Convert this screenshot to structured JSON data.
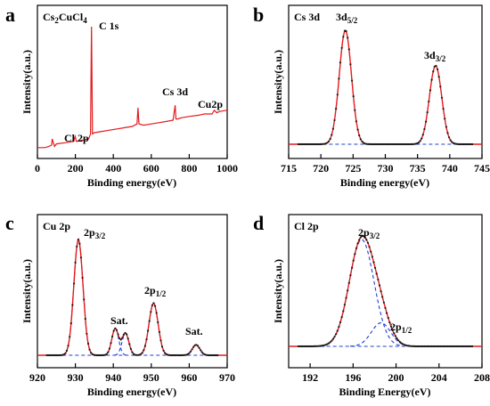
{
  "chart_data": [
    {
      "panel": "a",
      "type": "line",
      "title": "Cs₂CuCl₄",
      "xlabel": "Binding energy(eV)",
      "ylabel": "Intensity(a.u.)",
      "xlim": [
        0,
        1000
      ],
      "ylim": [
        0,
        100
      ],
      "xticks": [
        "0",
        "200",
        "400",
        "600",
        "800",
        "1000"
      ],
      "grid": false,
      "annotations": [
        {
          "text": "C 1s",
          "x": 285,
          "y": 89
        },
        {
          "text": "Cs 3d",
          "x": 726,
          "y": 44
        },
        {
          "text": "Cu2p",
          "x": 935,
          "y": 33
        },
        {
          "text": "Cl 2p",
          "x": 199,
          "y": 13
        }
      ],
      "series": [
        {
          "color": "#e41a1c",
          "x": [
            0,
            40,
            60,
            75,
            78,
            90,
            100,
            150,
            190,
            199,
            205,
            240,
            270,
            280,
            285,
            290,
            300,
            340,
            380,
            420,
            460,
            500,
            525,
            530,
            535,
            560,
            600,
            640,
            680,
            715,
            726,
            730,
            740,
            760,
            800,
            850,
            880,
            920,
            932,
            945,
            960,
            1000
          ],
          "y": [
            3,
            3,
            4,
            5,
            10,
            4,
            6,
            7,
            8,
            12,
            8,
            9,
            10,
            14,
            100,
            14,
            15,
            16,
            17,
            18,
            19,
            20,
            22,
            35,
            22,
            21,
            22,
            23,
            24,
            25,
            37,
            26,
            26,
            27,
            28,
            29,
            30,
            30,
            33,
            31,
            32,
            33
          ]
        }
      ]
    },
    {
      "panel": "b",
      "type": "line",
      "title": "Cs 3d",
      "xlabel": "Binding energy(eV)",
      "ylabel": "Intensity(a.u.)",
      "xlim": [
        715,
        745
      ],
      "ylim": [
        0,
        100
      ],
      "xticks": [
        "715",
        "720",
        "725",
        "730",
        "735",
        "740",
        "745"
      ],
      "grid": false,
      "annotations": [
        {
          "text": "3d",
          "sub": "5/2",
          "x": 723.8,
          "y": 100
        },
        {
          "text": "3d",
          "sub": "3/2",
          "x": 737.8,
          "y": 69
        }
      ],
      "peaks": [
        {
          "center": 723.8,
          "amplitude": 100,
          "width": 0.95
        },
        {
          "center": 737.8,
          "amplitude": 69,
          "width": 0.95
        }
      ],
      "baseline": 0,
      "series": [
        {
          "name": "",
          "color": "#1a1a1a",
          "style": "points"
        },
        {
          "name": "",
          "color": "#e41a1c",
          "style": "fit"
        },
        {
          "name": "",
          "color": "#1f3fd6",
          "style": "dashed-baseline"
        }
      ]
    },
    {
      "panel": "c",
      "type": "line",
      "title": "Cu 2p",
      "xlabel": "Binding energy(eV)",
      "ylabel": "Intensity(a.u.)",
      "xlim": [
        920,
        970
      ],
      "ylim": [
        0,
        100
      ],
      "xticks": [
        "920",
        "930",
        "940",
        "950",
        "960",
        "970"
      ],
      "grid": false,
      "annotations": [
        {
          "text": "2p",
          "sub": "3/2",
          "x": 930.8,
          "y": 100
        },
        {
          "text": "Sat.",
          "x": 940.5,
          "y": 23
        },
        {
          "text": "2p",
          "sub": "1/2",
          "x": 950.6,
          "y": 45
        },
        {
          "text": "Sat.",
          "x": 961.8,
          "y": 9
        }
      ],
      "peaks": [
        {
          "center": 930.8,
          "amplitude": 100,
          "width": 1.2
        },
        {
          "center": 940.5,
          "amplitude": 23,
          "width": 0.9
        },
        {
          "center": 943.2,
          "amplitude": 19,
          "width": 0.9
        },
        {
          "center": 950.6,
          "amplitude": 45,
          "width": 1.2
        },
        {
          "center": 961.8,
          "amplitude": 9,
          "width": 1.0
        }
      ],
      "baseline": 0,
      "series": [
        {
          "name": "",
          "color": "#1a1a1a",
          "style": "points"
        },
        {
          "name": "",
          "color": "#e41a1c",
          "style": "fit"
        },
        {
          "name": "",
          "color": "#1f3fd6",
          "style": "dashed-components"
        }
      ]
    },
    {
      "panel": "d",
      "type": "line",
      "title": "Cl 2p",
      "xlabel": "Binding Energy(eV)",
      "ylabel": "Intensity(a.u.)",
      "xlim": [
        190,
        208
      ],
      "ylim": [
        0,
        100
      ],
      "xticks": [
        "192",
        "196",
        "200",
        "204",
        "208"
      ],
      "grid": false,
      "annotations": [
        {
          "text": "2p",
          "sub": "3/2",
          "x": 196.8,
          "y": 100
        },
        {
          "text": "2p",
          "sub": "1/2",
          "x": 198.7,
          "y": 25
        }
      ],
      "peaks": [
        {
          "center": 196.8,
          "amplitude": 100,
          "width": 1.15
        },
        {
          "center": 198.6,
          "amplitude": 22,
          "width": 0.9
        }
      ],
      "baseline": 0,
      "series": [
        {
          "name": "",
          "color": "#1a1a1a",
          "style": "points"
        },
        {
          "name": "",
          "color": "#e41a1c",
          "style": "fit"
        },
        {
          "name": "",
          "color": "#1f3fd6",
          "style": "dashed-components"
        }
      ]
    }
  ]
}
